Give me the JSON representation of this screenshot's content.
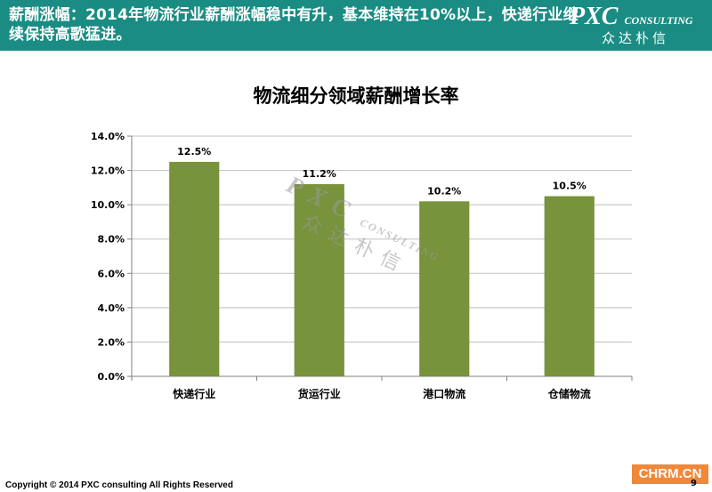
{
  "header": {
    "text": "薪酬涨幅：2014年物流行业薪酬涨幅稳中有升，基本维持在10%以上，快递行业继续保持高歌猛进。",
    "logo_main": "PXC",
    "logo_sub": "CONSULTING",
    "logo_cn": "众达朴信"
  },
  "watermark": {
    "main": "PXC",
    "sub": "CONSULTING",
    "cn": "众达朴信"
  },
  "footer": {
    "copyright": "Copyright © 2014  PXC consulting All Rights Reserved",
    "page_number": "9",
    "brand": "CHRM.CN"
  },
  "colors": {
    "header_bg": "#1b8c83",
    "bar": "#77933c",
    "brand_bg": "#f0883a"
  },
  "chart_data": {
    "type": "bar",
    "title": "物流细分领域薪酬增长率",
    "categories": [
      "快递行业",
      "货运行业",
      "港口物流",
      "仓储物流"
    ],
    "values": [
      12.5,
      11.2,
      10.2,
      10.5
    ],
    "data_labels": [
      "12.5%",
      "11.2%",
      "10.2%",
      "10.5%"
    ],
    "ylim": [
      0,
      14
    ],
    "yticks": [
      "0.0%",
      "2.0%",
      "4.0%",
      "6.0%",
      "8.0%",
      "10.0%",
      "12.0%",
      "14.0%"
    ],
    "xlabel": "",
    "ylabel": "",
    "grid": true,
    "legend": "none"
  }
}
